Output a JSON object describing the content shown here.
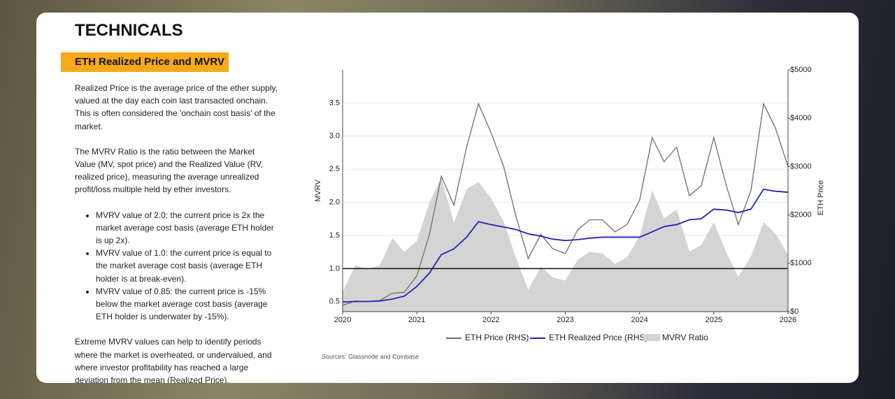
{
  "header": {
    "title": "TECHNICALS",
    "section": "ETH Realized Price and MVRV"
  },
  "paragraphs": [
    "Realized Price is the average price of the ether supply, valued at the day each coin last transacted onchain. This is often considered the 'onchain cost basis' of the market.",
    "The MVRV Ratio is the ratio between the Market Value (MV, spot price) and the Realized Value (RV, realized price), measuring the average unrealized profit/loss multiple held by ether investors."
  ],
  "bullets": [
    "MVRV value of 2.0: the current price is 2x the market average cost basis (average ETH holder is up 2x).",
    "MVRV value of 1.0: the current price is equal to the market average cost basis (average ETH holder is at break-even).",
    "MVRV value of 0.85: the current price is -15% below the market average cost basis (average ETH holder is underwater by -15%)."
  ],
  "closing": "Extreme MVRV values can help to identify periods where the market is overheated, or undervalued, and where investor profitability has reached a large deviation from the mean (Realized Price).",
  "chart_data": {
    "type": "line",
    "ylabel": "MVRV",
    "y2label": "ETH Price",
    "source": "Sources: Glassnode and Coinbase",
    "x": [
      2020.0,
      2020.17,
      2020.33,
      2020.5,
      2020.67,
      2020.83,
      2021.0,
      2021.17,
      2021.33,
      2021.5,
      2021.67,
      2021.83,
      2022.0,
      2022.17,
      2022.33,
      2022.5,
      2022.67,
      2022.83,
      2023.0,
      2023.17,
      2023.33,
      2023.5,
      2023.67,
      2023.83,
      2024.0,
      2024.17,
      2024.33,
      2024.5,
      2024.67,
      2024.83,
      2025.0,
      2025.17,
      2025.33,
      2025.5,
      2025.67,
      2025.83,
      2026.0
    ],
    "series": [
      {
        "name": "ETH Price (RHS)",
        "color": "#6e6e6e",
        "type": "line",
        "axis": "y2",
        "values": [
          130,
          220,
          210,
          230,
          380,
          400,
          740,
          1600,
          2800,
          2200,
          3400,
          4300,
          3700,
          3000,
          2000,
          1100,
          1600,
          1300,
          1200,
          1700,
          1900,
          1900,
          1650,
          1800,
          2300,
          3600,
          3100,
          3400,
          2400,
          2600,
          3600,
          2600,
          1800,
          2500,
          4300,
          3800,
          3000
        ]
      },
      {
        "name": "ETH Realized Price (RHS)",
        "color": "#2323b4",
        "type": "line",
        "axis": "y2",
        "values": [
          200,
          210,
          210,
          220,
          260,
          320,
          520,
          800,
          1180,
          1300,
          1540,
          1860,
          1800,
          1750,
          1700,
          1610,
          1560,
          1500,
          1470,
          1490,
          1520,
          1540,
          1540,
          1540,
          1540,
          1650,
          1760,
          1800,
          1900,
          1920,
          2120,
          2100,
          2050,
          2120,
          2530,
          2490,
          2470
        ]
      },
      {
        "name": "MVRV Ratio",
        "color": "#d4d4d4",
        "type": "area",
        "axis": "y",
        "values": [
          0.65,
          1.05,
          1.0,
          1.05,
          1.46,
          1.25,
          1.42,
          2.0,
          2.37,
          1.69,
          2.2,
          2.31,
          2.06,
          1.71,
          1.18,
          0.68,
          1.03,
          0.87,
          0.82,
          1.14,
          1.25,
          1.23,
          1.07,
          1.17,
          1.49,
          2.18,
          1.76,
          1.89,
          1.26,
          1.35,
          1.7,
          1.24,
          0.88,
          1.18,
          1.7,
          1.53,
          1.21
        ]
      }
    ],
    "xlim": [
      2020,
      2026
    ],
    "xticks": [
      2020,
      2021,
      2022,
      2023,
      2024,
      2025,
      2026
    ],
    "ylim": [
      0.35,
      4.0
    ],
    "yticks": [
      0.5,
      {
        "value": 1,
        "label": "1.0"
      },
      1.5,
      {
        "value": 2,
        "label": "2.0"
      },
      2.5,
      {
        "value": 3,
        "label": "3.0"
      },
      3.5
    ],
    "y2lim": [
      0,
      5000
    ],
    "y2ticks": [
      {
        "value": 0,
        "label": "$0"
      },
      {
        "value": 1000,
        "label": "$1000"
      },
      {
        "value": 2000,
        "label": "$2000"
      },
      {
        "value": 3000,
        "label": "$3000"
      },
      {
        "value": 4000,
        "label": "$4000"
      },
      {
        "value": 5000,
        "label": "$5000"
      }
    ],
    "reference_line": 1,
    "grid": true
  }
}
